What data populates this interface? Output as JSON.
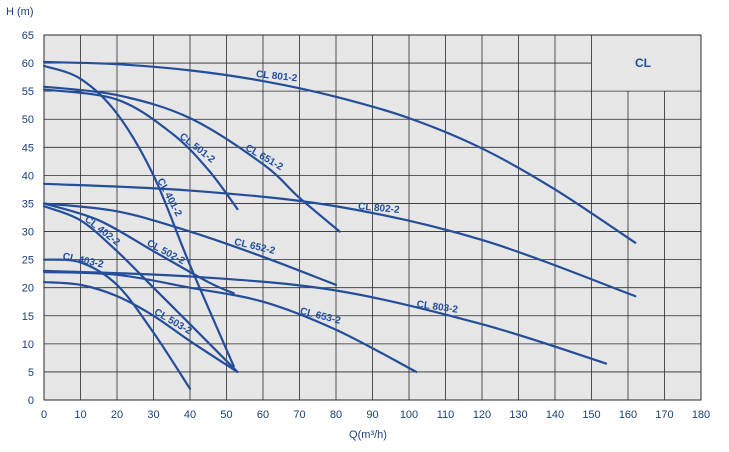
{
  "chart_data": {
    "type": "line",
    "title": "",
    "brand_label": "CL",
    "xlabel": "Q(m³/h)",
    "ylabel": "H (m)",
    "xlim": [
      0,
      180
    ],
    "ylim": [
      0,
      65
    ],
    "xticks": [
      0,
      10,
      20,
      30,
      40,
      50,
      60,
      70,
      80,
      90,
      100,
      110,
      120,
      130,
      140,
      150,
      160,
      170,
      180
    ],
    "yticks": [
      0,
      5,
      10,
      15,
      20,
      25,
      30,
      35,
      40,
      45,
      50,
      55,
      60,
      65
    ],
    "grid": true,
    "colors": {
      "background": "#e6e6e6",
      "grid": "#2b2b2b",
      "curve": "#244e9a",
      "label": "#1f4ea0"
    },
    "series": [
      {
        "name": "CL 801-2",
        "x": [
          0,
          20,
          40,
          60,
          80,
          100,
          120,
          140,
          162
        ],
        "y": [
          60.2,
          59.8,
          58.7,
          56.8,
          54.0,
          50.2,
          44.8,
          37.5,
          28.0
        ]
      },
      {
        "name": "CL 651-2",
        "x": [
          0,
          20,
          40,
          60,
          70,
          81
        ],
        "y": [
          55.8,
          54.3,
          50.2,
          42.0,
          36.0,
          30.0
        ]
      },
      {
        "name": "CL 501-2",
        "x": [
          0,
          20,
          35,
          45,
          53
        ],
        "y": [
          55.3,
          53.5,
          47.5,
          41.0,
          34.0
        ]
      },
      {
        "name": "CL 401-2",
        "x": [
          0,
          10,
          20,
          30,
          40,
          52
        ],
        "y": [
          59.5,
          57.2,
          51.0,
          40.0,
          24.0,
          6.0
        ]
      },
      {
        "name": "CL 802-2",
        "x": [
          0,
          40,
          80,
          120,
          162
        ],
        "y": [
          38.5,
          37.3,
          34.5,
          28.5,
          18.5
        ]
      },
      {
        "name": "CL 652-2",
        "x": [
          0,
          20,
          40,
          60,
          80
        ],
        "y": [
          35.0,
          33.6,
          30.0,
          25.5,
          20.5
        ]
      },
      {
        "name": "CL 502-2",
        "x": [
          0,
          15,
          30,
          45,
          52
        ],
        "y": [
          35.0,
          32.0,
          26.5,
          21.0,
          19.0
        ]
      },
      {
        "name": "CL 402-2",
        "x": [
          0,
          10,
          20,
          30,
          40,
          53
        ],
        "y": [
          34.5,
          32.0,
          26.5,
          20.0,
          13.5,
          5.0
        ]
      },
      {
        "name": "CL 803-2",
        "x": [
          0,
          40,
          80,
          120,
          154
        ],
        "y": [
          23.0,
          22.0,
          19.5,
          13.5,
          6.5
        ]
      },
      {
        "name": "CL 653-2",
        "x": [
          0,
          20,
          40,
          60,
          80,
          102
        ],
        "y": [
          22.8,
          22.3,
          20.0,
          17.5,
          12.5,
          5.0
        ]
      },
      {
        "name": "CL 503-2",
        "x": [
          0,
          10,
          20,
          30,
          40,
          53
        ],
        "y": [
          21.0,
          20.5,
          18.5,
          15.0,
          10.5,
          5.0
        ]
      },
      {
        "name": "CL 403-2",
        "x": [
          0,
          10,
          20,
          30,
          40
        ],
        "y": [
          25.0,
          24.5,
          20.5,
          12.0,
          2.0
        ]
      }
    ]
  }
}
